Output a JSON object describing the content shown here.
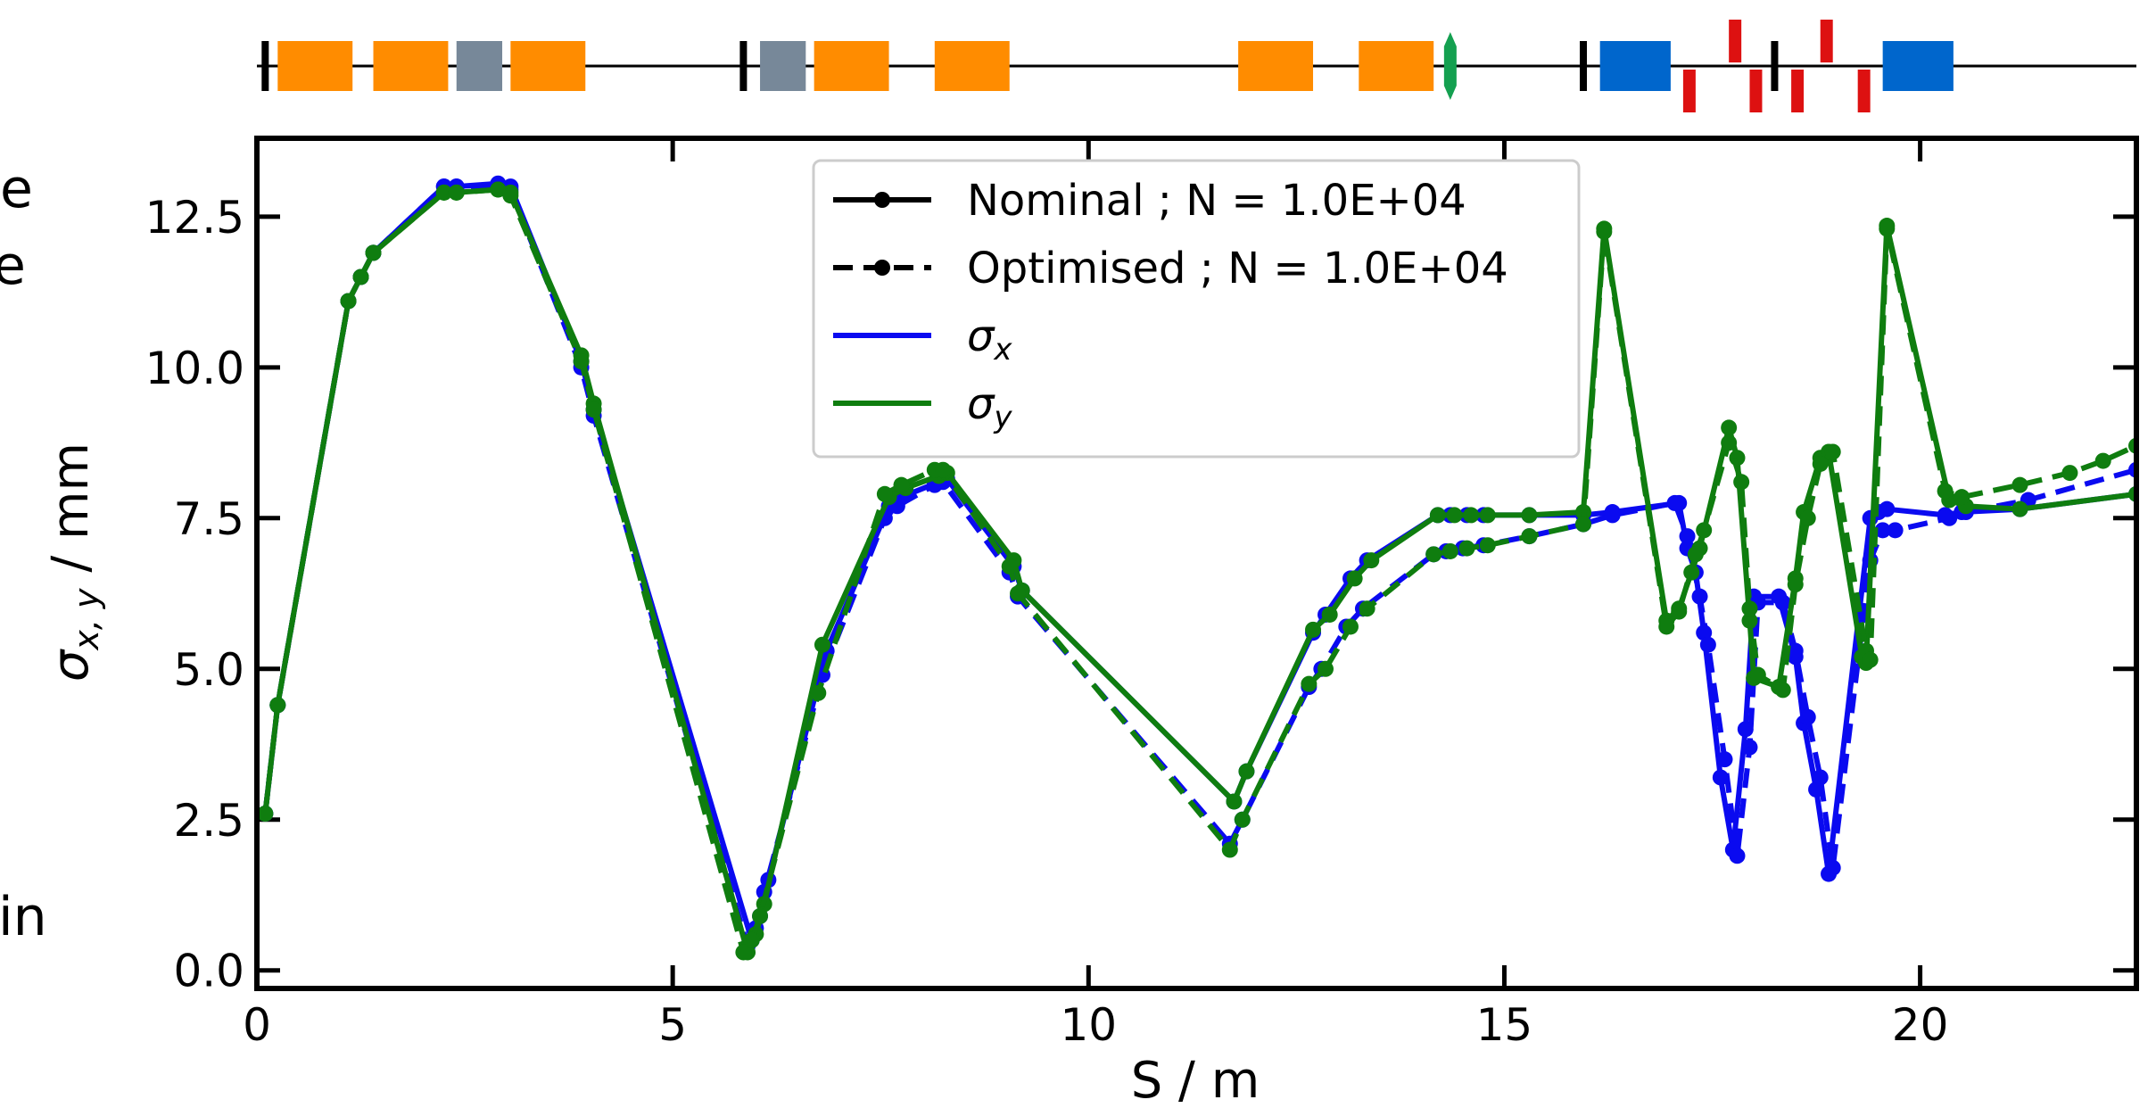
{
  "chart_data": {
    "type": "line",
    "xlabel": "S / m",
    "ylabel_main": "σ",
    "ylabel_sub": "x, y",
    "ylabel_unit": " / mm",
    "xlim": [
      0,
      22.6
    ],
    "ylim": [
      -0.3,
      13.8
    ],
    "xticks": [
      0,
      5,
      10,
      15,
      20
    ],
    "yticks": [
      0.0,
      2.5,
      5.0,
      7.5,
      10.0,
      12.5
    ],
    "xtick_labels": [
      "0",
      "5",
      "10",
      "15",
      "20"
    ],
    "ytick_labels": [
      "0.0",
      "2.5",
      "5.0",
      "7.5",
      "10.0",
      "12.5"
    ],
    "legend": {
      "position": "top-center",
      "nominal": "Nominal ; N = 1.0E+04",
      "optimised": "Optimised ; N = 1.0E+04",
      "sx_main": "σ",
      "sx_sub": "x",
      "sy_main": "σ",
      "sy_sub": "y"
    },
    "cut_text": {
      "left_top": "e",
      "left_mid": "e",
      "left_bottom": "in"
    },
    "colors": {
      "sigma_x": "#0a0af0",
      "sigma_y": "#0f7d0f"
    },
    "series": [
      {
        "name": "σx Nominal",
        "color": "#0a0af0",
        "dash": false,
        "x": [
          0.1,
          0.25,
          1.1,
          1.25,
          1.4,
          2.25,
          2.4,
          2.9,
          3.05,
          3.9,
          4.05,
          5.95,
          6.05,
          6.15,
          6.85,
          7.6,
          7.75,
          8.2,
          8.3,
          9.1,
          9.2,
          11.75,
          11.9,
          12.7,
          12.85,
          13.15,
          13.35,
          14.2,
          14.35,
          14.55,
          14.75,
          15.3,
          15.95,
          16.3,
          17.1,
          17.2,
          17.3,
          17.4,
          17.6,
          17.75,
          17.9,
          18.0,
          18.3,
          18.5,
          18.6,
          18.75,
          18.9,
          19.4,
          19.5,
          19.6,
          20.3,
          20.5,
          21.2,
          22.6
        ],
        "y": [
          2.6,
          4.4,
          11.1,
          11.5,
          11.9,
          13.0,
          13.0,
          13.05,
          13.0,
          10.1,
          9.3,
          0.5,
          0.9,
          1.5,
          5.3,
          7.7,
          7.85,
          8.1,
          8.15,
          6.7,
          6.3,
          2.8,
          3.3,
          5.6,
          5.9,
          6.5,
          6.8,
          7.55,
          7.55,
          7.55,
          7.55,
          7.55,
          7.55,
          7.6,
          7.75,
          7.0,
          6.6,
          5.6,
          3.2,
          2.0,
          4.0,
          6.2,
          6.2,
          5.2,
          4.1,
          3.0,
          1.6,
          7.5,
          7.6,
          7.65,
          7.55,
          7.6,
          7.65,
          7.9
        ]
      },
      {
        "name": "σx Optimised",
        "color": "#0a0af0",
        "dash": true,
        "x": [
          0.1,
          0.25,
          1.1,
          1.25,
          1.4,
          2.25,
          2.4,
          2.9,
          3.05,
          3.9,
          4.05,
          5.9,
          6.0,
          6.1,
          6.8,
          7.55,
          7.7,
          8.15,
          8.25,
          9.05,
          9.15,
          11.7,
          11.85,
          12.65,
          12.8,
          13.1,
          13.3,
          14.15,
          14.3,
          14.5,
          14.75,
          15.3,
          15.95,
          16.3,
          17.05,
          17.2,
          17.35,
          17.45,
          17.65,
          17.8,
          17.95,
          18.05,
          18.35,
          18.5,
          18.65,
          18.8,
          18.95,
          19.4,
          19.55,
          19.7,
          20.35,
          20.55,
          21.3,
          22.6
        ],
        "y": [
          2.6,
          4.4,
          11.1,
          11.5,
          11.9,
          13.0,
          13.0,
          13.0,
          12.95,
          10.0,
          9.2,
          0.4,
          0.7,
          1.3,
          4.9,
          7.5,
          7.7,
          8.05,
          8.1,
          6.6,
          6.2,
          2.1,
          2.5,
          4.7,
          5.0,
          5.7,
          6.0,
          6.9,
          6.95,
          7.0,
          7.05,
          7.2,
          7.4,
          7.55,
          7.75,
          7.2,
          6.2,
          5.4,
          3.5,
          1.9,
          3.7,
          6.1,
          6.1,
          5.3,
          4.2,
          3.2,
          1.7,
          6.8,
          7.3,
          7.3,
          7.5,
          7.6,
          7.8,
          8.3
        ]
      },
      {
        "name": "σy Nominal",
        "color": "#0f7d0f",
        "dash": false,
        "x": [
          0.1,
          0.25,
          1.1,
          1.25,
          1.4,
          2.25,
          2.4,
          2.9,
          3.05,
          3.9,
          4.05,
          5.9,
          6.0,
          6.1,
          6.8,
          7.6,
          7.8,
          8.2,
          8.3,
          9.1,
          9.2,
          11.75,
          11.9,
          12.7,
          12.9,
          13.2,
          13.4,
          14.2,
          14.4,
          14.6,
          14.8,
          15.3,
          15.95,
          16.2,
          16.95,
          17.1,
          17.25,
          17.35,
          17.7,
          17.8,
          17.95,
          18.0,
          18.3,
          18.5,
          18.6,
          18.8,
          18.9,
          19.3,
          19.35,
          19.6,
          20.35,
          20.55,
          21.2,
          22.6
        ],
        "y": [
          2.6,
          4.4,
          11.1,
          11.5,
          11.9,
          12.9,
          12.9,
          12.95,
          12.9,
          10.2,
          9.4,
          0.3,
          0.6,
          1.1,
          5.4,
          7.85,
          8.0,
          8.2,
          8.25,
          6.8,
          6.3,
          2.8,
          3.3,
          5.65,
          5.9,
          6.5,
          6.8,
          7.55,
          7.55,
          7.55,
          7.55,
          7.55,
          7.6,
          12.3,
          5.8,
          6.0,
          6.6,
          7.0,
          9.0,
          8.5,
          5.8,
          4.85,
          4.7,
          6.5,
          7.6,
          8.5,
          8.6,
          5.2,
          5.1,
          12.35,
          7.8,
          7.7,
          7.65,
          7.9
        ]
      },
      {
        "name": "σy Optimised",
        "color": "#0f7d0f",
        "dash": true,
        "x": [
          0.1,
          0.25,
          1.1,
          1.25,
          1.4,
          2.25,
          2.4,
          2.9,
          3.05,
          3.9,
          4.05,
          5.85,
          5.95,
          6.05,
          6.75,
          7.55,
          7.75,
          8.15,
          8.25,
          9.05,
          9.15,
          11.7,
          11.85,
          12.65,
          12.85,
          13.15,
          13.35,
          14.15,
          14.35,
          14.55,
          14.8,
          15.3,
          15.95,
          16.2,
          16.95,
          17.1,
          17.3,
          17.4,
          17.7,
          17.85,
          17.95,
          18.05,
          18.35,
          18.5,
          18.65,
          18.8,
          18.95,
          19.35,
          19.4,
          19.6,
          20.3,
          20.5,
          21.2,
          21.8,
          22.2,
          22.6
        ],
        "y": [
          2.6,
          4.4,
          11.1,
          11.5,
          11.9,
          12.9,
          12.9,
          12.95,
          12.85,
          10.1,
          9.3,
          0.3,
          0.5,
          0.9,
          4.6,
          7.9,
          8.05,
          8.3,
          8.3,
          6.7,
          6.25,
          2.0,
          2.5,
          4.75,
          5.0,
          5.7,
          6.0,
          6.9,
          6.95,
          7.0,
          7.05,
          7.2,
          7.4,
          12.25,
          5.7,
          5.95,
          6.9,
          7.3,
          8.75,
          8.1,
          6.0,
          4.9,
          4.65,
          6.4,
          7.5,
          8.4,
          8.6,
          5.3,
          5.15,
          12.3,
          7.95,
          7.85,
          8.05,
          8.25,
          8.45,
          8.7
        ]
      }
    ],
    "lattice": {
      "elements": [
        {
          "kind": "marker",
          "x0": 0.1,
          "x1": 0.1,
          "color": "#000000"
        },
        {
          "kind": "quad",
          "x0": 0.25,
          "x1": 1.15,
          "color": "#ff8c00"
        },
        {
          "kind": "quad",
          "x0": 1.4,
          "x1": 2.3,
          "color": "#ff8c00"
        },
        {
          "kind": "block",
          "x0": 2.4,
          "x1": 2.95,
          "color": "#778899"
        },
        {
          "kind": "quad",
          "x0": 3.05,
          "x1": 3.95,
          "color": "#ff8c00"
        },
        {
          "kind": "marker",
          "x0": 5.85,
          "x1": 5.85,
          "color": "#000000"
        },
        {
          "kind": "block",
          "x0": 6.05,
          "x1": 6.6,
          "color": "#778899"
        },
        {
          "kind": "quad",
          "x0": 6.7,
          "x1": 7.6,
          "color": "#ff8c00"
        },
        {
          "kind": "quad",
          "x0": 8.15,
          "x1": 9.05,
          "color": "#ff8c00"
        },
        {
          "kind": "quad",
          "x0": 11.8,
          "x1": 12.7,
          "color": "#ff8c00"
        },
        {
          "kind": "quad",
          "x0": 13.25,
          "x1": 14.15,
          "color": "#ff8c00"
        },
        {
          "kind": "diamond",
          "x0": 14.35,
          "x1": 14.35,
          "color": "#14a050"
        },
        {
          "kind": "marker",
          "x0": 15.95,
          "x1": 15.95,
          "color": "#000000"
        },
        {
          "kind": "dipole",
          "x0": 16.15,
          "x1": 17.0,
          "color": "#0066cc"
        },
        {
          "kind": "kick_down",
          "x0": 17.15,
          "x1": 17.3,
          "color": "#dd1111"
        },
        {
          "kind": "kick_up",
          "x0": 17.7,
          "x1": 17.85,
          "color": "#dd1111"
        },
        {
          "kind": "kick_down",
          "x0": 17.95,
          "x1": 18.1,
          "color": "#dd1111"
        },
        {
          "kind": "marker",
          "x0": 18.25,
          "x1": 18.25,
          "color": "#000000"
        },
        {
          "kind": "kick_down",
          "x0": 18.45,
          "x1": 18.6,
          "color": "#dd1111"
        },
        {
          "kind": "kick_up",
          "x0": 18.8,
          "x1": 18.95,
          "color": "#dd1111"
        },
        {
          "kind": "kick_down",
          "x0": 19.25,
          "x1": 19.4,
          "color": "#dd1111"
        },
        {
          "kind": "dipole",
          "x0": 19.55,
          "x1": 20.4,
          "color": "#0066cc"
        }
      ]
    }
  }
}
